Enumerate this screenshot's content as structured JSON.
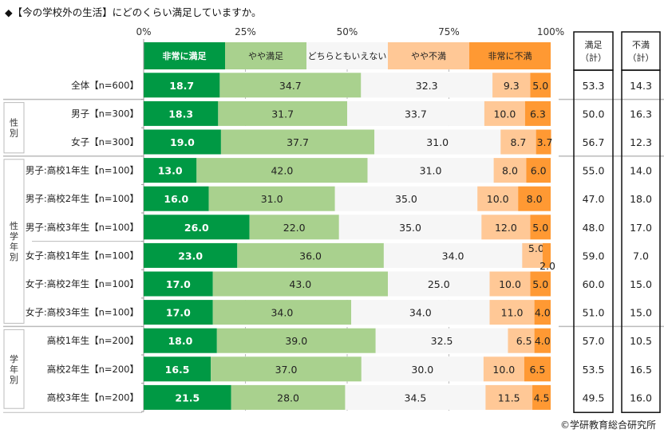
{
  "title": "◆【今の学校外の生活】にどのくらい満足していますか。",
  "credit": "©学研教育総合研究所",
  "chart_data": {
    "type": "bar",
    "orientation": "horizontal",
    "stacked": true,
    "percent_stacked": true,
    "title": "◆【今の学校外の生活】にどのくらい満足していますか。",
    "xlabel": "",
    "ylabel": "",
    "xlim": [
      0,
      100
    ],
    "xticks": [
      "0%",
      "25%",
      "50%",
      "75%",
      "100%"
    ],
    "grid": true,
    "legend_position": "top",
    "legend": [
      "非常に満足",
      "やや満足",
      "どちらともいえない",
      "やや不満",
      "非常に不満"
    ],
    "colors": [
      "#009944",
      "#a9d18e",
      "#f6f6f6",
      "#ffc896",
      "#ff9933"
    ],
    "label_colors": [
      "#ffffff",
      "#222222",
      "#222222",
      "#222222",
      "#222222"
    ],
    "groups": [
      {
        "label": "",
        "rows": [
          0
        ]
      },
      {
        "label": "性別",
        "rows": [
          1,
          2
        ]
      },
      {
        "label": "性学年別",
        "rows": [
          3,
          4,
          5,
          6,
          7,
          8
        ]
      },
      {
        "label": "学年別",
        "rows": [
          9,
          10,
          11
        ]
      }
    ],
    "categories": [
      "全体【n=600】",
      "男子【n=300】",
      "女子【n=300】",
      "男子:高校1年生【n=100】",
      "男子:高校2年生【n=100】",
      "男子:高校3年生【n=100】",
      "女子:高校1年生【n=100】",
      "女子:高校2年生【n=100】",
      "女子:高校3年生【n=100】",
      "高校1年生【n=200】",
      "高校2年生【n=200】",
      "高校3年生【n=200】"
    ],
    "series": [
      {
        "name": "非常に満足",
        "values": [
          18.7,
          18.3,
          19.0,
          13.0,
          16.0,
          26.0,
          23.0,
          17.0,
          17.0,
          18.0,
          16.5,
          21.5
        ]
      },
      {
        "name": "やや満足",
        "values": [
          34.7,
          31.7,
          37.7,
          42.0,
          31.0,
          22.0,
          36.0,
          43.0,
          34.0,
          39.0,
          37.0,
          28.0
        ]
      },
      {
        "name": "どちらともいえない",
        "values": [
          32.3,
          33.7,
          31.0,
          31.0,
          35.0,
          35.0,
          34.0,
          25.0,
          34.0,
          32.5,
          30.0,
          34.5
        ]
      },
      {
        "name": "やや不満",
        "values": [
          9.3,
          10.0,
          8.7,
          8.0,
          10.0,
          12.0,
          5.0,
          10.0,
          11.0,
          6.5,
          10.0,
          11.5
        ]
      },
      {
        "name": "非常に不満",
        "values": [
          5.0,
          6.3,
          3.7,
          6.0,
          8.0,
          5.0,
          2.0,
          5.0,
          4.0,
          4.0,
          6.5,
          4.5
        ]
      }
    ],
    "summary_columns": [
      {
        "header_line1": "満足",
        "header_line2": "（計）",
        "values": [
          "53.3",
          "50.0",
          "56.7",
          "55.0",
          "47.0",
          "48.0",
          "59.0",
          "60.0",
          "51.0",
          "57.0",
          "53.5",
          "49.5"
        ]
      },
      {
        "header_line1": "不満",
        "header_line2": "（計）",
        "values": [
          "14.3",
          "16.3",
          "12.3",
          "14.0",
          "18.0",
          "17.0",
          "7.0",
          "15.0",
          "15.0",
          "10.5",
          "16.5",
          "16.0"
        ]
      }
    ]
  }
}
